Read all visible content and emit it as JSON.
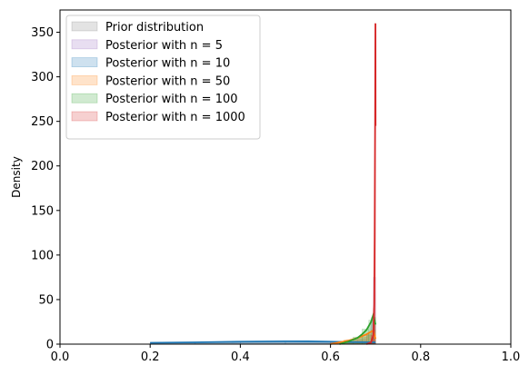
{
  "chart_data": {
    "type": "area",
    "title": "",
    "xlabel": "",
    "ylabel": "Density",
    "xlim": [
      0.0,
      1.0
    ],
    "ylim": [
      0,
      375
    ],
    "xticks": [
      "0.0",
      "0.2",
      "0.4",
      "0.6",
      "0.8",
      "1.0"
    ],
    "yticks": [
      "0",
      "50",
      "100",
      "150",
      "200",
      "250",
      "300",
      "350"
    ],
    "grid": false,
    "legend_position": "top-left",
    "series": [
      {
        "name": "Prior distribution",
        "color": "#7f7f7f",
        "show_line": false,
        "hist": [
          [
            0.2,
            0.3,
            2
          ],
          [
            0.3,
            0.4,
            2
          ],
          [
            0.4,
            0.5,
            2
          ],
          [
            0.5,
            0.6,
            2
          ],
          [
            0.6,
            0.7,
            2
          ]
        ],
        "kde_x": [
          0.2,
          0.7
        ],
        "kde_y": [
          2,
          2
        ]
      },
      {
        "name": "Posterior with n = 5",
        "color": "#9467bd",
        "show_line": false,
        "hist": [
          [
            0.6,
            0.65,
            2
          ],
          [
            0.65,
            0.68,
            5
          ],
          [
            0.68,
            0.69,
            10
          ],
          [
            0.69,
            0.695,
            30
          ],
          [
            0.695,
            0.7,
            75
          ]
        ],
        "kde_x": [
          0.6,
          0.65,
          0.68,
          0.69,
          0.695,
          0.7
        ],
        "kde_y": [
          1,
          3,
          8,
          20,
          40,
          60
        ]
      },
      {
        "name": "Posterior with n = 10",
        "color": "#1f77b4",
        "show_line": true,
        "hist": [
          [
            0.2,
            0.3,
            1.5
          ],
          [
            0.3,
            0.4,
            2.2
          ],
          [
            0.4,
            0.5,
            2.8
          ],
          [
            0.5,
            0.6,
            3.0
          ],
          [
            0.6,
            0.7,
            2.5
          ]
        ],
        "kde_x": [
          0.2,
          0.3,
          0.4,
          0.5,
          0.55,
          0.6,
          0.65,
          0.7
        ],
        "kde_y": [
          1.5,
          2.0,
          2.8,
          3.2,
          3.1,
          2.8,
          2.3,
          2.0
        ]
      },
      {
        "name": "Posterior with n = 50",
        "color": "#ff7f0e",
        "show_line": true,
        "hist": [
          [
            0.6,
            0.63,
            2
          ],
          [
            0.63,
            0.66,
            5
          ],
          [
            0.66,
            0.68,
            8
          ],
          [
            0.68,
            0.69,
            11
          ],
          [
            0.69,
            0.7,
            16
          ]
        ],
        "kde_x": [
          0.6,
          0.62,
          0.64,
          0.66,
          0.68,
          0.69,
          0.695,
          0.7
        ],
        "kde_y": [
          0,
          2,
          4,
          7,
          11,
          14,
          15,
          6
        ]
      },
      {
        "name": "Posterior with n = 100",
        "color": "#2ca02c",
        "show_line": true,
        "hist": [
          [
            0.62,
            0.65,
            3
          ],
          [
            0.65,
            0.67,
            8
          ],
          [
            0.67,
            0.685,
            17
          ],
          [
            0.685,
            0.695,
            27
          ],
          [
            0.695,
            0.7,
            30
          ]
        ],
        "kde_x": [
          0.62,
          0.64,
          0.66,
          0.67,
          0.68,
          0.69,
          0.695,
          0.7
        ],
        "kde_y": [
          0,
          3,
          7,
          11,
          16,
          25,
          33,
          22
        ]
      },
      {
        "name": "Posterior with n = 1000",
        "color": "#d62728",
        "show_line": true,
        "hist": [
          [
            0.685,
            0.69,
            3
          ],
          [
            0.69,
            0.695,
            10
          ],
          [
            0.695,
            0.698,
            40
          ],
          [
            0.698,
            0.7,
            360
          ]
        ],
        "kde_x": [
          0.68,
          0.69,
          0.695,
          0.697,
          0.698,
          0.699,
          0.6995,
          0.6998,
          0.7
        ],
        "kde_y": [
          0,
          2,
          10,
          45,
          120,
          250,
          330,
          360,
          245
        ]
      }
    ]
  }
}
